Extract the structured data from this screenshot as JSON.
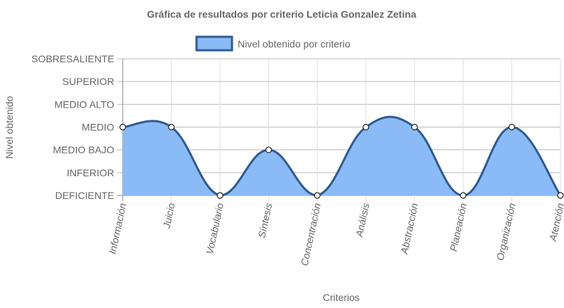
{
  "chart_data": {
    "type": "area",
    "title": "Gráfica de resultados por criterio Leticia Gonzalez Zetina",
    "xlabel": "Criterios",
    "ylabel": "Nivel obtenido",
    "y_levels": [
      "DEFICIENTE",
      "INFERIOR",
      "MEDIO BAJO",
      "MEDIO",
      "MEDIO ALTO",
      "SUPERIOR",
      "SOBRESALIENTE"
    ],
    "categories": [
      "Información",
      "Juicio",
      "Vocabulario",
      "Síntesis",
      "Concentración",
      "Análisis",
      "Abstracción",
      "Planeación",
      "Organización",
      "Atención"
    ],
    "series": [
      {
        "name": "Nivel obtenido por criterio",
        "values": [
          "MEDIO",
          "MEDIO",
          "DEFICIENTE",
          "MEDIO BAJO",
          "DEFICIENTE",
          "MEDIO",
          "MEDIO",
          "DEFICIENTE",
          "MEDIO",
          "DEFICIENTE"
        ],
        "fill_color": "#8abbf7",
        "line_color": "#2e5b91"
      }
    ],
    "grid": true,
    "legend_position": "top"
  }
}
